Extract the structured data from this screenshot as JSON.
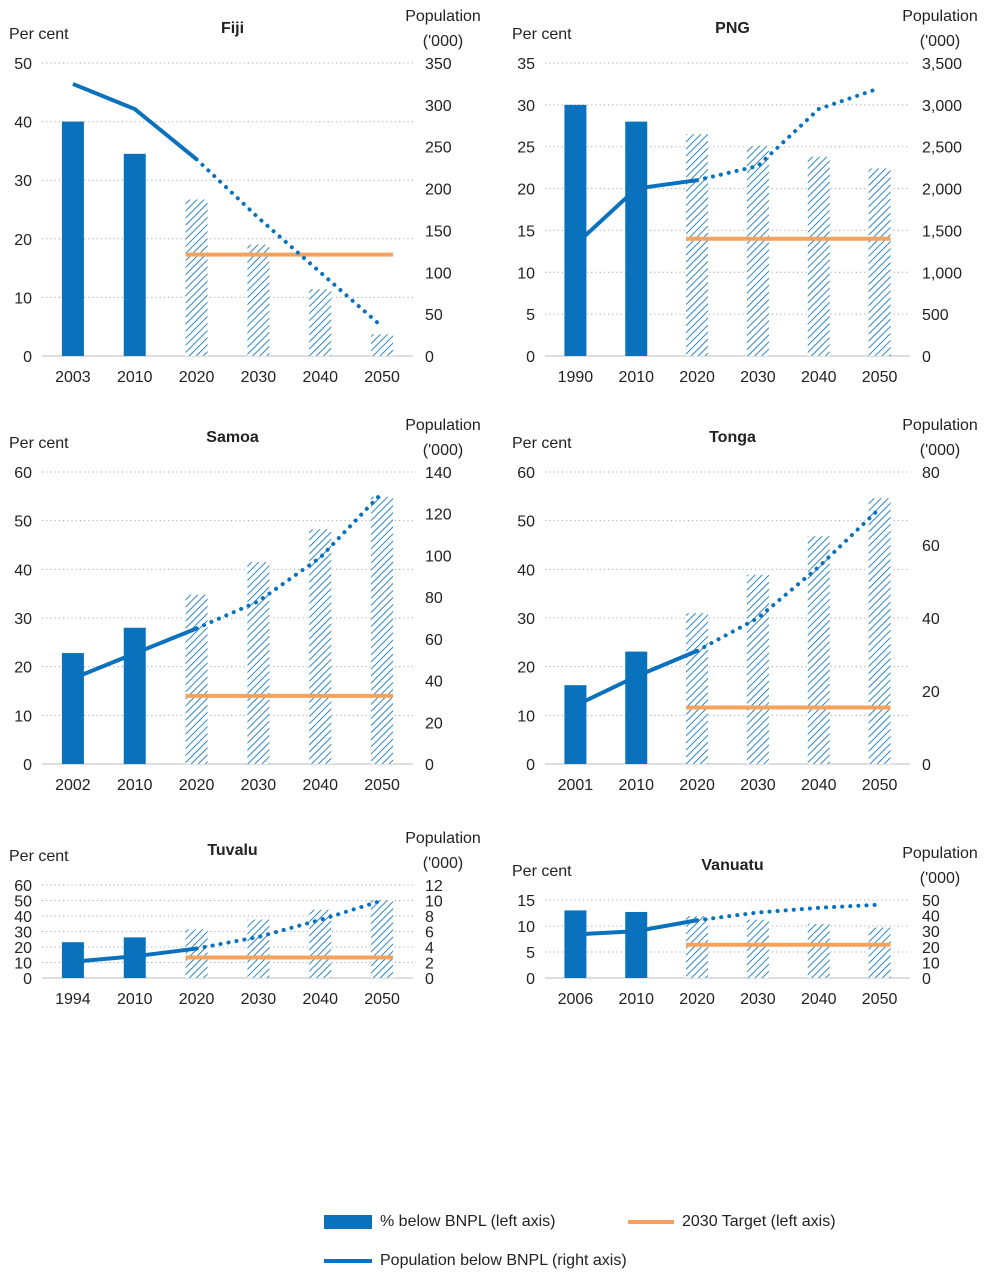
{
  "colors": {
    "bar": "#0a72bd",
    "projected_hatch": "#0a72bd",
    "line": "#0a72bd",
    "target": "#f5a25d",
    "grid": "#a8a8a8",
    "text": "#222222"
  },
  "legend": {
    "bar_label": "% below BNPL (left axis)",
    "target_label": "2030 Target (left axis)",
    "line_label": "Population below BNPL (right axis)"
  },
  "chart_data": [
    {
      "type": "bar",
      "title": "Fiji",
      "left_axis_label": "Per cent",
      "right_axis_label": [
        "Population",
        "('000)"
      ],
      "categories": [
        "2003",
        "2010",
        "2020",
        "2030",
        "2040",
        "2050"
      ],
      "projected_from_index": 2,
      "ylim_left": [
        0,
        50
      ],
      "left_ticks": [
        0,
        10,
        20,
        30,
        40,
        50
      ],
      "left_tick_labels": [
        "0",
        "10",
        "20",
        "30",
        "40",
        "50"
      ],
      "ylim_right": [
        0,
        350
      ],
      "right_ticks": [
        0,
        50,
        100,
        150,
        200,
        250,
        300,
        350
      ],
      "right_tick_labels": [
        "0",
        "50",
        "100",
        "150",
        "200",
        "250",
        "300",
        "350"
      ],
      "series": [
        {
          "name": "% below BNPL (left axis)",
          "axis": "left",
          "kind": "bar",
          "values": [
            40,
            34.5,
            26.7,
            19,
            11.4,
            3.7
          ]
        },
        {
          "name": "2030 Target (left axis)",
          "axis": "left",
          "kind": "target",
          "value": 17.3,
          "from_index": 2,
          "to_index": 5
        },
        {
          "name": "Population below BNPL (right axis)",
          "axis": "right",
          "kind": "line",
          "values": [
            325,
            295,
            235,
            165,
            100,
            35
          ]
        }
      ]
    },
    {
      "type": "bar",
      "title": "PNG",
      "left_axis_label": "Per cent",
      "right_axis_label": [
        "Population",
        "('000)"
      ],
      "categories": [
        "1990",
        "2010",
        "2020",
        "2030",
        "2040",
        "2050"
      ],
      "projected_from_index": 2,
      "ylim_left": [
        0,
        35
      ],
      "left_ticks": [
        0,
        5,
        10,
        15,
        20,
        25,
        30,
        35
      ],
      "left_tick_labels": [
        "0",
        "5",
        "10",
        "15",
        "20",
        "25",
        "30",
        "35"
      ],
      "ylim_right": [
        0,
        3500
      ],
      "right_ticks": [
        0,
        500,
        1000,
        1500,
        2000,
        2500,
        3000,
        3500
      ],
      "right_tick_labels": [
        "0",
        "500",
        "1,000",
        "1,500",
        "2,000",
        "2,500",
        "3,000",
        "3,500"
      ],
      "series": [
        {
          "name": "% below BNPL (left axis)",
          "axis": "left",
          "kind": "bar",
          "values": [
            30,
            28,
            26.5,
            25.1,
            23.8,
            22.4
          ]
        },
        {
          "name": "2030 Target (left axis)",
          "axis": "left",
          "kind": "target",
          "value": 14,
          "from_index": 2,
          "to_index": 5
        },
        {
          "name": "Population below BNPL (right axis)",
          "axis": "right",
          "kind": "line",
          "values": [
            1330,
            2000,
            2100,
            2270,
            2950,
            3200
          ]
        }
      ]
    },
    {
      "type": "bar",
      "title": "Samoa",
      "left_axis_label": "Per cent",
      "right_axis_label": [
        "Population",
        "('000)"
      ],
      "categories": [
        "2002",
        "2010",
        "2020",
        "2030",
        "2040",
        "2050"
      ],
      "projected_from_index": 2,
      "ylim_left": [
        0,
        60
      ],
      "left_ticks": [
        0,
        10,
        20,
        30,
        40,
        50,
        60
      ],
      "left_tick_labels": [
        "0",
        "10",
        "20",
        "30",
        "40",
        "50",
        "60"
      ],
      "ylim_right": [
        0,
        140
      ],
      "right_ticks": [
        0,
        20,
        40,
        60,
        80,
        100,
        120,
        140
      ],
      "right_tick_labels": [
        "0",
        "20",
        "40",
        "60",
        "80",
        "100",
        "120",
        "140"
      ],
      "series": [
        {
          "name": "% below BNPL (left axis)",
          "axis": "left",
          "kind": "bar",
          "values": [
            22.8,
            28,
            34.8,
            41.5,
            48.2,
            54.9
          ]
        },
        {
          "name": "2030 Target (left axis)",
          "axis": "left",
          "kind": "target",
          "value": 14,
          "from_index": 2,
          "to_index": 5
        },
        {
          "name": "Population below BNPL (right axis)",
          "axis": "right",
          "kind": "line",
          "values": [
            41,
            53,
            65,
            78,
            99,
            130
          ]
        }
      ]
    },
    {
      "type": "bar",
      "title": "Tonga",
      "left_axis_label": "Per cent",
      "right_axis_label": [
        "Population",
        "('000)"
      ],
      "categories": [
        "2001",
        "2010",
        "2020",
        "2030",
        "2040",
        "2050"
      ],
      "projected_from_index": 2,
      "ylim_left": [
        0,
        60
      ],
      "left_ticks": [
        0,
        10,
        20,
        30,
        40,
        50,
        60
      ],
      "left_tick_labels": [
        "0",
        "10",
        "20",
        "30",
        "40",
        "50",
        "60"
      ],
      "ylim_right": [
        0,
        80
      ],
      "right_ticks": [
        0,
        20,
        40,
        60,
        80
      ],
      "right_tick_labels": [
        "0",
        "20",
        "40",
        "60",
        "80"
      ],
      "series": [
        {
          "name": "% below BNPL (left axis)",
          "axis": "left",
          "kind": "bar",
          "values": [
            16.2,
            23.1,
            31,
            38.9,
            46.8,
            54.6
          ]
        },
        {
          "name": "2030 Target (left axis)",
          "axis": "left",
          "kind": "target",
          "value": 11.6,
          "from_index": 2,
          "to_index": 5
        },
        {
          "name": "Population below BNPL (right axis)",
          "axis": "right",
          "kind": "line",
          "values": [
            16,
            24,
            31,
            40,
            54,
            70
          ]
        }
      ]
    },
    {
      "type": "bar",
      "title": "Tuvalu",
      "left_axis_label": "Per cent",
      "right_axis_label": [
        "Population",
        "('000)"
      ],
      "categories": [
        "1994",
        "2010",
        "2020",
        "2030",
        "2040",
        "2050"
      ],
      "projected_from_index": 2,
      "ylim_left": [
        0,
        60
      ],
      "left_ticks": [
        0,
        10,
        20,
        30,
        40,
        50,
        60
      ],
      "left_tick_labels": [
        "0",
        "10",
        "20",
        "30",
        "40",
        "50",
        "60"
      ],
      "ylim_right": [
        0,
        12
      ],
      "right_ticks": [
        0,
        2,
        4,
        6,
        8,
        10,
        12
      ],
      "right_tick_labels": [
        "0",
        "2",
        "4",
        "6",
        "8",
        "10",
        "12"
      ],
      "series": [
        {
          "name": "% below BNPL (left axis)",
          "axis": "left",
          "kind": "bar",
          "values": [
            23.1,
            26.2,
            31.4,
            37.7,
            44,
            50.3
          ]
        },
        {
          "name": "2030 Target (left axis)",
          "axis": "left",
          "kind": "target",
          "value": 13.2,
          "from_index": 2,
          "to_index": 5
        },
        {
          "name": "Population below BNPL (right axis)",
          "axis": "right",
          "kind": "line",
          "values": [
            2.1,
            2.8,
            3.8,
            5.3,
            7.5,
            10
          ]
        }
      ]
    },
    {
      "type": "bar",
      "title": "Vanuatu",
      "left_axis_label": "Per cent",
      "right_axis_label": [
        "Population",
        "('000)"
      ],
      "categories": [
        "2006",
        "2010",
        "2020",
        "2030",
        "2040",
        "2050"
      ],
      "projected_from_index": 2,
      "ylim_left": [
        0,
        15
      ],
      "left_ticks": [
        0,
        5,
        10,
        15
      ],
      "left_tick_labels": [
        "0",
        "5",
        "10",
        "15"
      ],
      "ylim_right": [
        0,
        50
      ],
      "right_ticks": [
        0,
        10,
        20,
        30,
        40,
        50
      ],
      "right_tick_labels": [
        "0",
        "10",
        "20",
        "30",
        "40",
        "50"
      ],
      "series": [
        {
          "name": "% below BNPL (left axis)",
          "axis": "left",
          "kind": "bar",
          "values": [
            13,
            12.7,
            11.9,
            11.2,
            10.4,
            9.7
          ]
        },
        {
          "name": "2030 Target (left axis)",
          "axis": "left",
          "kind": "target",
          "value": 6.4,
          "from_index": 2,
          "to_index": 5
        },
        {
          "name": "Population below BNPL (right axis)",
          "axis": "right",
          "kind": "line",
          "values": [
            28,
            30,
            37,
            42,
            45,
            47
          ]
        }
      ]
    }
  ]
}
